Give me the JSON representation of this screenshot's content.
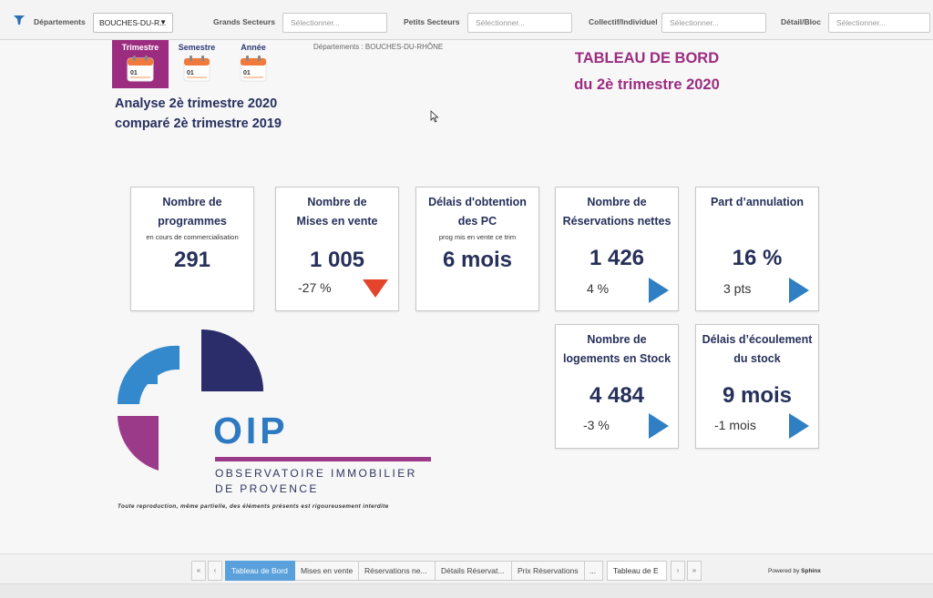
{
  "filters": {
    "departements_label": "Départements",
    "departements_value": "BOUCHES-DU-R...",
    "grands_secteurs_label": "Grands Secteurs",
    "petits_secteurs_label": "Petits Secteurs",
    "collectif_label": "Collectif/Individuel",
    "detail_label": "Détail/Bloc",
    "placeholder": "Sélectionner..."
  },
  "periods": {
    "trimestre": "Trimestre",
    "semestre": "Semestre",
    "annee": "Année",
    "calendar_day": "01",
    "active": "Trimestre"
  },
  "breadcrumb": "Départements : BOUCHES-DU-RHÔNE",
  "analyse": {
    "line1": "Analyse  2è trimestre 2020",
    "line2": "comparé 2è trimestre 2019"
  },
  "dashboard_title": {
    "line1": "TABLEAU DE BORD",
    "line2": "du 2è trimestre 2020"
  },
  "kpis": {
    "programmes": {
      "title1": "Nombre de",
      "title2": "programmes",
      "sub": "en cours de commercialisation",
      "value": "291"
    },
    "mises": {
      "title1": "Nombre de",
      "title2": "Mises en vente",
      "value": "1 005",
      "variation": "-27 %",
      "trend": "down"
    },
    "delais_pc": {
      "title1": "Délais d'obtention",
      "title2": "des PC",
      "sub": "prog mis en vente ce trim",
      "value": "6 mois"
    },
    "reservations": {
      "title1": "Nombre de",
      "title2": "Réservations nettes",
      "value": "1 426",
      "variation": "4 %",
      "trend": "flat"
    },
    "annulation": {
      "title1": "Part d’annulation",
      "value": "16 %",
      "variation": "3 pts",
      "trend": "flat"
    },
    "stock": {
      "title1": "Nombre de",
      "title2": "logements en Stock",
      "value": "4 484",
      "variation": "-3 %",
      "trend": "flat"
    },
    "ecoulement": {
      "title1": "Délais d’écoulement",
      "title2": "du stock",
      "value": "9 mois",
      "variation": "-1 mois",
      "trend": "flat"
    }
  },
  "logo": {
    "acronym": "OIP",
    "line1": "OBSERVATOIRE IMMOBILIER",
    "line2": "DE PROVENCE"
  },
  "legal": "Toute reproduction, même partielle, des éléments  présents est rigoureusement interdite",
  "bottom_tabs": {
    "first": "«",
    "prev": "‹",
    "tab1": "Tableau de Bord",
    "tab2": "Mises en vente",
    "tab3": "Réservations ne...",
    "tab4": "Détails Réservat...",
    "tab5": "Prix Réservations",
    "more": "...",
    "selector": "Tableau de E",
    "next": "›",
    "last": "»"
  },
  "powered": {
    "prefix": "Powered by",
    "brand": "Sphinx"
  },
  "colors": {
    "accent_purple": "#9c2c80",
    "navy": "#26305a",
    "blue_arrow": "#2f7fc2",
    "red_arrow": "#e2452b",
    "active_tab": "#5aa0dc"
  }
}
